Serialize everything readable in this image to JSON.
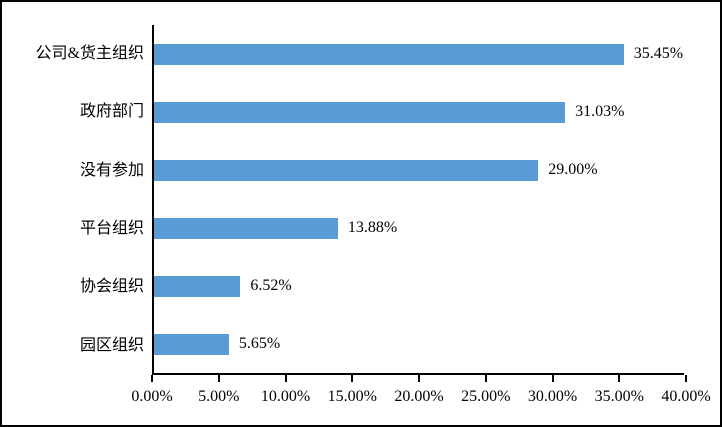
{
  "chart_data": {
    "type": "bar",
    "orientation": "horizontal",
    "title": "",
    "xlabel": "",
    "ylabel": "",
    "categories": [
      "公司&货主组织",
      "政府部门",
      "没有参加",
      "平台组织",
      "协会组织",
      "园区组织"
    ],
    "values": [
      35.45,
      31.03,
      29.0,
      13.88,
      6.52,
      5.65
    ],
    "value_labels": [
      "35.45%",
      "31.03%",
      "29.00%",
      "13.88%",
      "6.52%",
      "5.65%"
    ],
    "x_ticks": [
      "0.00%",
      "5.00%",
      "10.00%",
      "15.00%",
      "20.00%",
      "25.00%",
      "30.00%",
      "35.00%",
      "40.00%"
    ],
    "x_tick_values": [
      0,
      5,
      10,
      15,
      20,
      25,
      30,
      35,
      40
    ],
    "xlim": [
      0,
      40
    ],
    "grid": false,
    "legend": false,
    "bar_color": "#5B9BD5",
    "axis_color": "#000000",
    "background_color": "#ffffff",
    "border_color": "#000000"
  }
}
